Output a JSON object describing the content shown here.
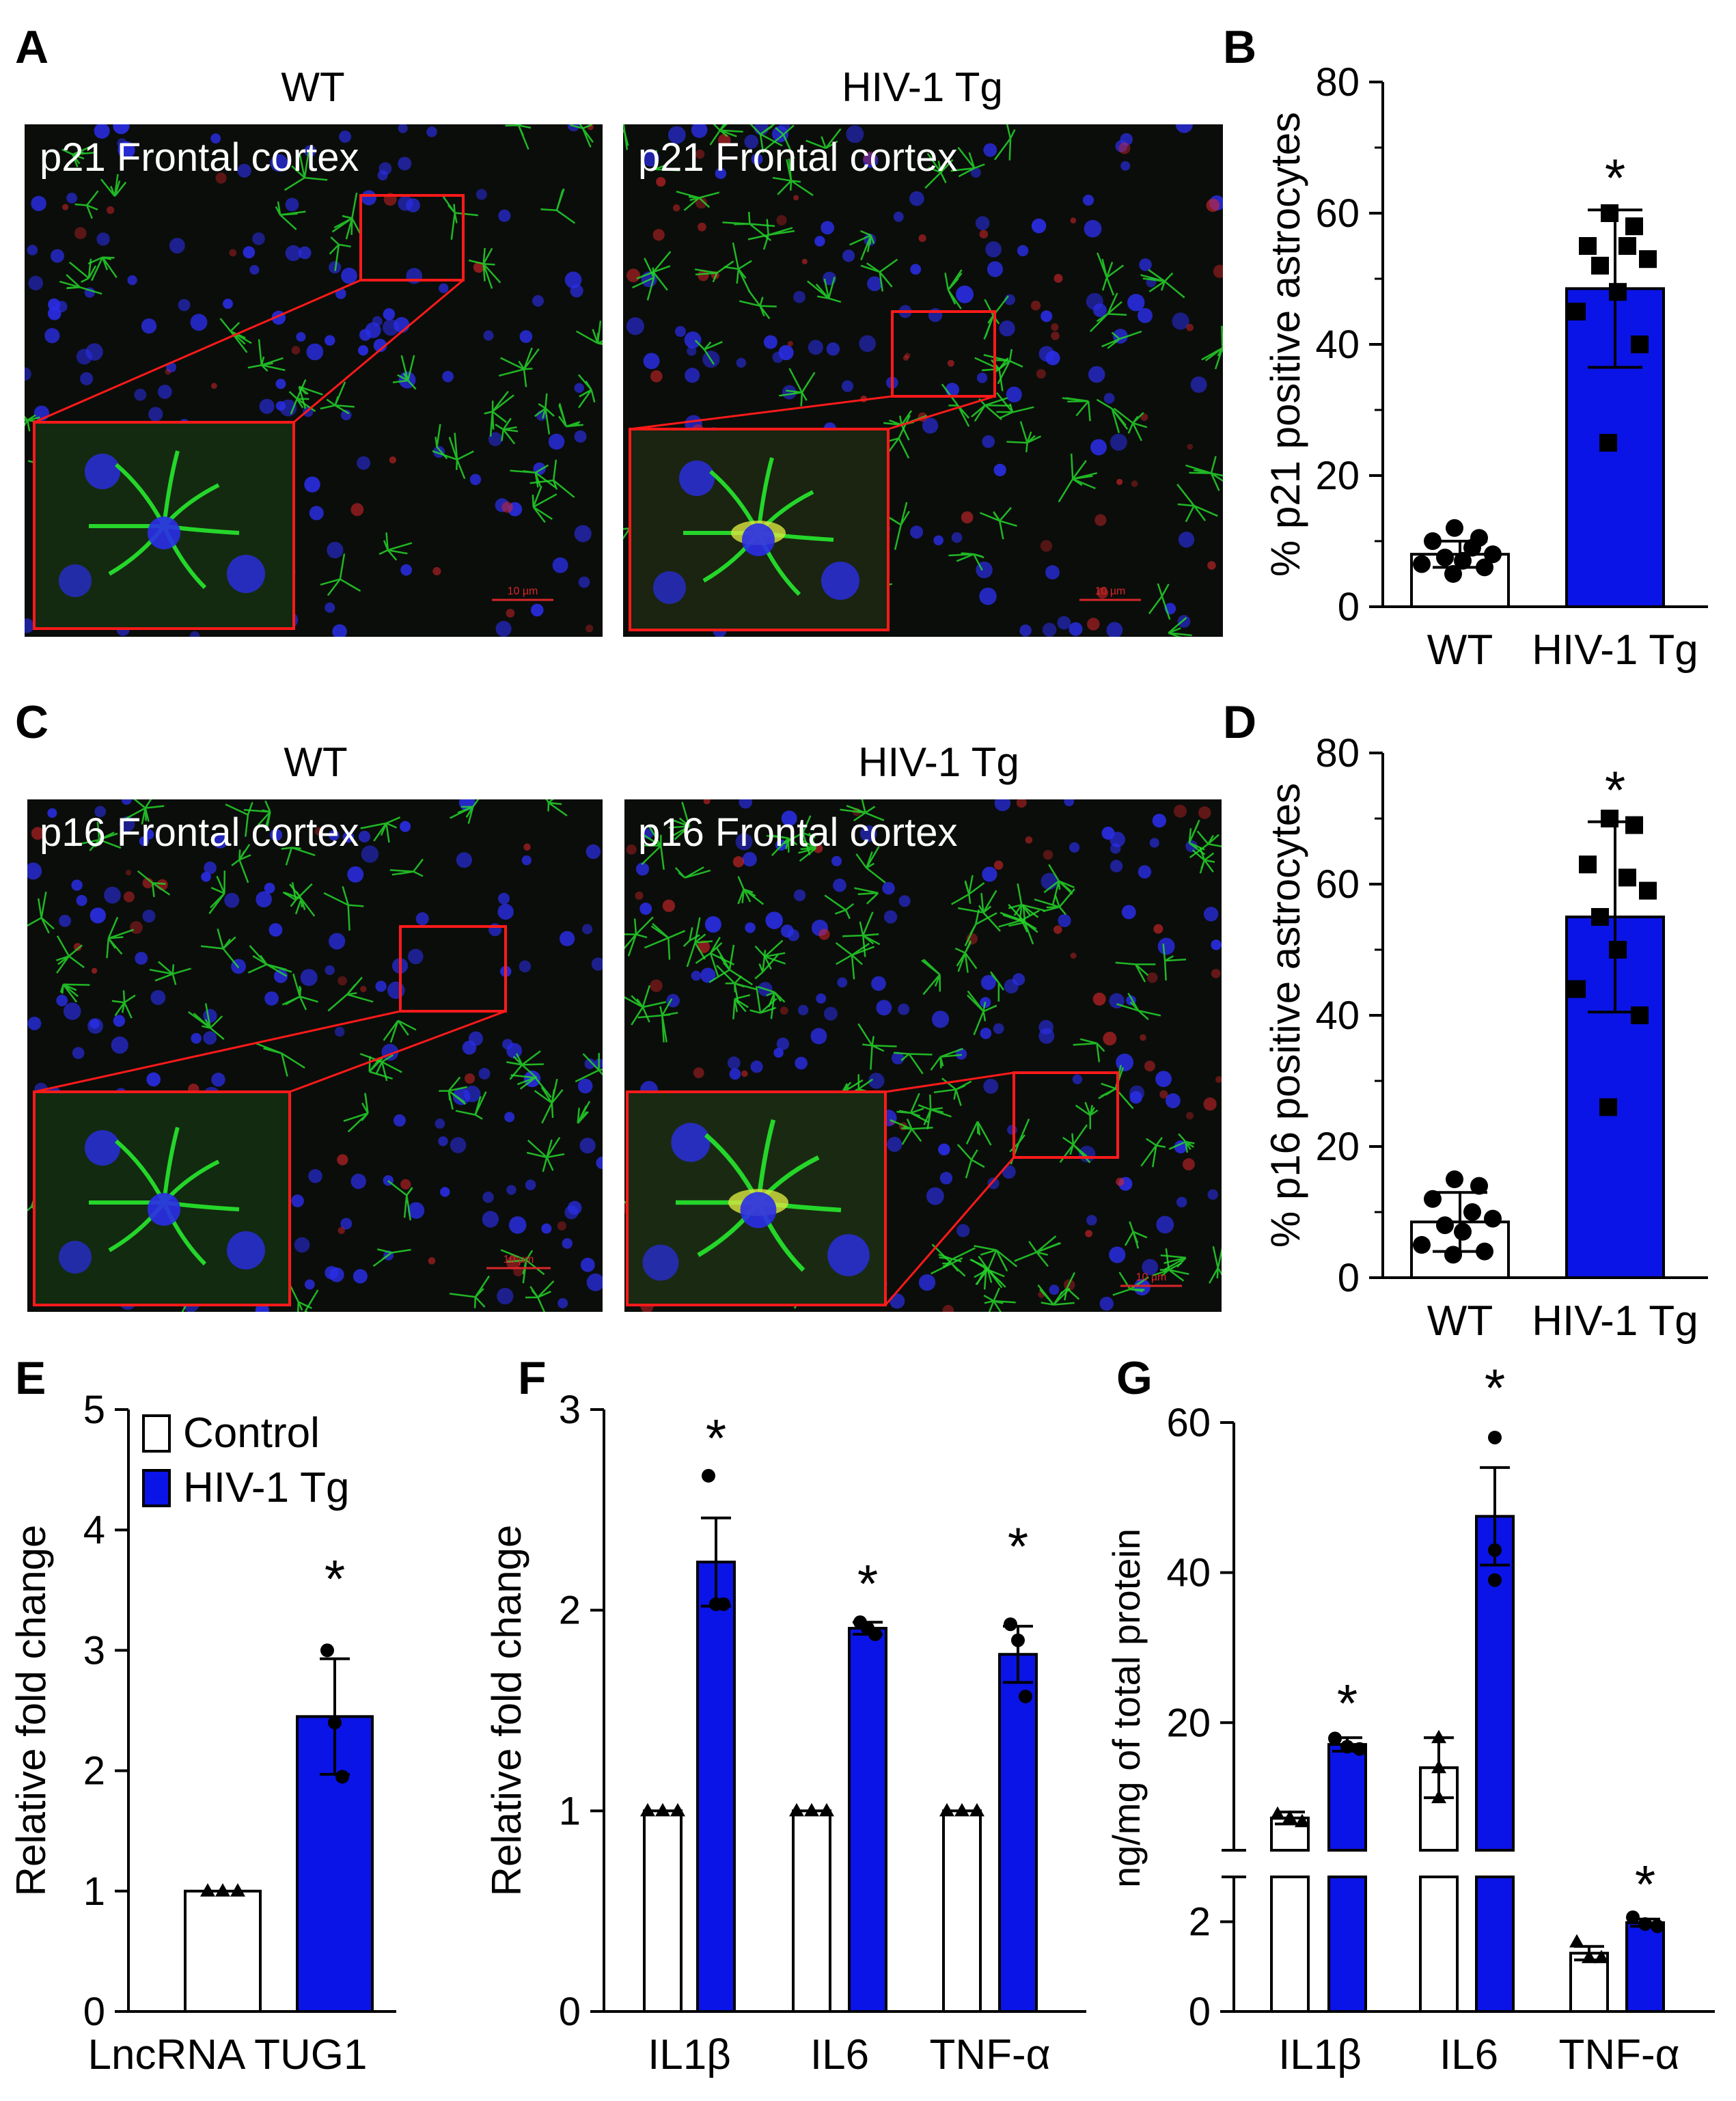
{
  "colors": {
    "control": "#ffffff",
    "hiv": "#0a14e6",
    "inset_border": "#ff1a1a",
    "micro_bg": "#0b0d0a",
    "astro": "#25d62a",
    "nuclei": "#2a2ee8",
    "marker": "#d8262a"
  },
  "panels": {
    "A": "A",
    "B": "B",
    "C": "C",
    "D": "D",
    "E": "E",
    "F": "F",
    "G": "G"
  },
  "micro": {
    "row1": {
      "wt_title": "WT",
      "tg_title": "HIV-1 Tg",
      "wt_label": "p21 Frontal cortex",
      "tg_label": "p21 Frontal cortex",
      "scale": "10 µm"
    },
    "row2": {
      "wt_title": "WT",
      "tg_title": "HIV-1 Tg",
      "wt_label": "p16 Frontal cortex",
      "tg_label": "p16 Frontal cortex",
      "scale": "10 µm"
    }
  },
  "chart_data": [
    {
      "id": "B",
      "type": "bar",
      "ylabel": "% p21 positive astrocytes",
      "ylim": [
        0,
        80
      ],
      "yticks": [
        0,
        20,
        40,
        60,
        80
      ],
      "categories": [
        "WT",
        "HIV-1 Tg"
      ],
      "values": [
        8,
        48.5
      ],
      "errors": [
        2,
        12
      ],
      "points": [
        [
          12,
          10.5,
          10,
          9,
          8,
          7.5,
          7,
          6.5,
          6,
          5
        ],
        [
          60,
          58,
          55,
          55,
          53,
          52,
          48,
          45,
          40,
          25
        ]
      ],
      "significance": [
        "",
        "*"
      ]
    },
    {
      "id": "D",
      "type": "bar",
      "ylabel": "% p16 positive astrocytes",
      "ylim": [
        0,
        80
      ],
      "yticks": [
        0,
        20,
        40,
        60,
        80
      ],
      "categories": [
        "WT",
        "HIV-1 Tg"
      ],
      "values": [
        8.5,
        55
      ],
      "errors": [
        4.5,
        14.5
      ],
      "points": [
        [
          15,
          14,
          12,
          10,
          9,
          8,
          7,
          5,
          4,
          3.5
        ],
        [
          70,
          69,
          63,
          61,
          59,
          55,
          50,
          44,
          40,
          26
        ]
      ],
      "significance": [
        "",
        "*"
      ]
    },
    {
      "id": "E",
      "type": "bar",
      "ylabel": "Relative fold change",
      "ylim": [
        0,
        5
      ],
      "yticks": [
        0,
        1,
        2,
        3,
        4,
        5
      ],
      "xlabel": "LncRNA TUG1",
      "series": [
        {
          "name": "Control",
          "values": [
            1
          ],
          "errors": [
            0
          ],
          "points": [
            [
              1,
              1,
              1
            ]
          ]
        },
        {
          "name": "HIV-1 Tg",
          "values": [
            2.45
          ],
          "errors": [
            0.48
          ],
          "points": [
            [
              3,
              2.4,
              1.95
            ]
          ]
        }
      ],
      "significance": [
        "*"
      ]
    },
    {
      "id": "F",
      "type": "bar",
      "ylabel": "Relative fold change",
      "ylim": [
        0,
        3
      ],
      "yticks": [
        0,
        1,
        2,
        3
      ],
      "categories": [
        "IL1β",
        "IL6",
        "TNF-α"
      ],
      "series": [
        {
          "name": "Control",
          "values": [
            1,
            1,
            1
          ],
          "errors": [
            0,
            0,
            0
          ],
          "points": [
            [
              1,
              1,
              1
            ],
            [
              1,
              1,
              1
            ],
            [
              1,
              1,
              1
            ]
          ]
        },
        {
          "name": "HIV-1 Tg",
          "values": [
            2.24,
            1.91,
            1.78
          ],
          "errors": [
            0.22,
            0.03,
            0.14
          ],
          "points": [
            [
              2.67,
              2.03,
              2.03
            ],
            [
              1.94,
              1.91,
              1.88
            ],
            [
              1.93,
              1.85,
              1.57
            ]
          ]
        }
      ],
      "significance": [
        "*",
        "*",
        "*"
      ]
    },
    {
      "id": "G",
      "type": "bar",
      "ylabel": "ng/mg of total protein",
      "ylim_lower": [
        0,
        3
      ],
      "yticks_lower": [
        0,
        2
      ],
      "ylim_upper": [
        3,
        60
      ],
      "yticks_upper": [
        20,
        40,
        60
      ],
      "categories": [
        "IL1β",
        "IL6",
        "TNF-α"
      ],
      "series": [
        {
          "name": "Control",
          "values": [
            7.3,
            14,
            1.3
          ],
          "errors": [
            0.8,
            4,
            0.15
          ],
          "points": [
            [
              7.8,
              7.3,
              6.8
            ],
            [
              18,
              14,
              10
            ],
            [
              1.55,
              1.2,
              1.2
            ]
          ]
        },
        {
          "name": "HIV-1 Tg",
          "values": [
            17.1,
            47.5,
            1.98
          ],
          "errors": [
            0.9,
            6.5,
            0.08
          ],
          "points": [
            [
              17.9,
              16.8,
              16.5
            ],
            [
              58,
              43,
              39
            ],
            [
              2.1,
              1.95,
              1.9
            ]
          ]
        }
      ],
      "significance": [
        "*",
        "*",
        "*"
      ]
    }
  ]
}
